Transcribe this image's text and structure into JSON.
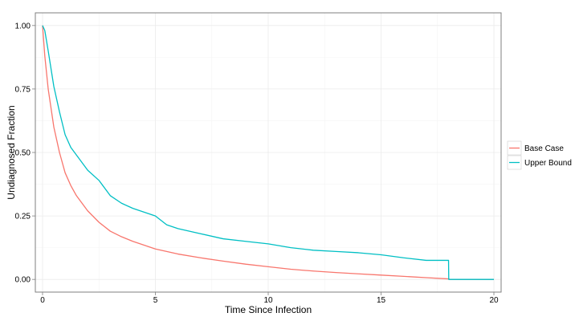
{
  "chart_data": {
    "type": "line",
    "title": "",
    "xlabel": "Time Since Infection",
    "ylabel": "Undiagnosed Fraction",
    "xlim": [
      0,
      20
    ],
    "ylim": [
      0,
      1
    ],
    "x_ticks": [
      "0",
      "5",
      "10",
      "15",
      "20"
    ],
    "y_ticks": [
      "0.00",
      "0.25",
      "0.50",
      "0.75",
      "1.00"
    ],
    "grid": true,
    "legend_position": "right",
    "series": [
      {
        "name": "Base Case",
        "color": "#F8766D",
        "x": [
          0,
          0.1,
          0.25,
          0.5,
          0.75,
          1.0,
          1.25,
          1.5,
          2.0,
          2.5,
          3.0,
          3.5,
          4.0,
          5.0,
          6.0,
          7.0,
          8.0,
          9.0,
          10.0,
          11.0,
          12.0,
          13.0,
          14.0,
          15.0,
          16.0,
          17.0,
          18.0,
          18.05,
          20.0
        ],
        "values": [
          1.0,
          0.88,
          0.75,
          0.6,
          0.5,
          0.42,
          0.37,
          0.33,
          0.27,
          0.225,
          0.19,
          0.168,
          0.15,
          0.12,
          0.1,
          0.085,
          0.072,
          0.06,
          0.05,
          0.04,
          0.033,
          0.027,
          0.022,
          0.017,
          0.012,
          0.007,
          0.002,
          0.0,
          0.0
        ]
      },
      {
        "name": "Upper Bound",
        "color": "#00BFC4",
        "x": [
          0,
          0.1,
          0.25,
          0.5,
          0.75,
          1.0,
          1.25,
          1.5,
          2.0,
          2.5,
          3.0,
          3.5,
          4.0,
          4.5,
          5.0,
          5.5,
          6.0,
          7.0,
          8.0,
          9.0,
          10.0,
          11.0,
          12.0,
          13.0,
          14.0,
          15.0,
          16.0,
          17.0,
          17.99,
          18.0,
          20.0
        ],
        "values": [
          1.0,
          0.98,
          0.9,
          0.76,
          0.66,
          0.57,
          0.52,
          0.49,
          0.43,
          0.39,
          0.33,
          0.3,
          0.28,
          0.265,
          0.25,
          0.215,
          0.2,
          0.18,
          0.16,
          0.15,
          0.14,
          0.125,
          0.115,
          0.11,
          0.105,
          0.097,
          0.085,
          0.075,
          0.075,
          0.0,
          0.0
        ]
      }
    ]
  }
}
